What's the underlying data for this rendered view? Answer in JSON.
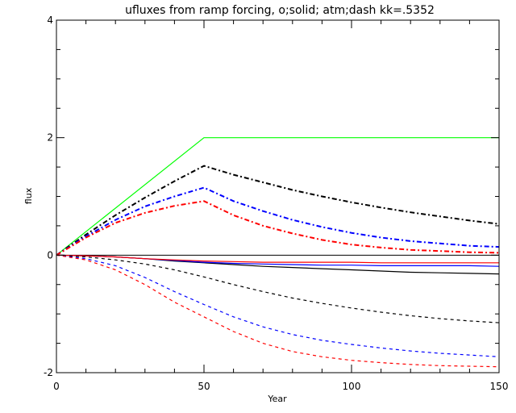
{
  "chart_data": {
    "type": "line",
    "title": "ufluxes from ramp forcing, o;solid; atm;dash kk=.5352",
    "xlabel": "Year",
    "ylabel": "flux",
    "xlim": [
      0,
      150
    ],
    "ylim": [
      -2,
      4
    ],
    "xticks": [
      0,
      50,
      100,
      150
    ],
    "yticks": [
      -2,
      0,
      2,
      4
    ],
    "x_minor_step": 10,
    "y_minor_step": 0.5,
    "grid": false,
    "legend": "none",
    "series": [
      {
        "color": "#00ff00",
        "style": "solid",
        "x": [
          0,
          50,
          150
        ],
        "y": [
          0,
          2.0,
          2.0
        ]
      },
      {
        "color": "#000000",
        "style": "dashdot",
        "x": [
          0,
          10,
          20,
          30,
          40,
          50,
          60,
          70,
          80,
          90,
          100,
          110,
          120,
          130,
          140,
          150
        ],
        "y": [
          0,
          0.35,
          0.68,
          0.98,
          1.26,
          1.52,
          1.37,
          1.24,
          1.11,
          1.0,
          0.9,
          0.81,
          0.73,
          0.66,
          0.59,
          0.53
        ]
      },
      {
        "color": "#0000ff",
        "style": "dashdot",
        "x": [
          0,
          10,
          20,
          30,
          40,
          50,
          60,
          70,
          80,
          90,
          100,
          110,
          120,
          130,
          140,
          150
        ],
        "y": [
          0,
          0.32,
          0.6,
          0.83,
          1.0,
          1.15,
          0.92,
          0.75,
          0.6,
          0.48,
          0.38,
          0.3,
          0.24,
          0.2,
          0.16,
          0.14
        ]
      },
      {
        "color": "#ff0000",
        "style": "dashdot",
        "x": [
          0,
          10,
          20,
          30,
          40,
          50,
          60,
          70,
          80,
          90,
          100,
          110,
          120,
          130,
          140,
          150
        ],
        "y": [
          0,
          0.3,
          0.55,
          0.72,
          0.84,
          0.92,
          0.68,
          0.5,
          0.37,
          0.26,
          0.18,
          0.13,
          0.09,
          0.07,
          0.05,
          0.04
        ]
      },
      {
        "color": "#000000",
        "style": "solid",
        "x": [
          0,
          10,
          20,
          30,
          40,
          50,
          60,
          70,
          80,
          90,
          100,
          110,
          120,
          130,
          140,
          150
        ],
        "y": [
          0,
          -0.01,
          -0.03,
          -0.06,
          -0.1,
          -0.13,
          -0.16,
          -0.19,
          -0.21,
          -0.23,
          -0.25,
          -0.27,
          -0.29,
          -0.3,
          -0.31,
          -0.32
        ]
      },
      {
        "color": "#0000ff",
        "style": "solid",
        "x": [
          0,
          10,
          20,
          30,
          40,
          50,
          60,
          70,
          80,
          90,
          100,
          110,
          120,
          130,
          140,
          150
        ],
        "y": [
          0,
          -0.01,
          -0.03,
          -0.06,
          -0.09,
          -0.12,
          -0.14,
          -0.15,
          -0.16,
          -0.17,
          -0.17,
          -0.18,
          -0.18,
          -0.18,
          -0.18,
          -0.19
        ]
      },
      {
        "color": "#ff0000",
        "style": "solid",
        "x": [
          0,
          10,
          20,
          30,
          40,
          50,
          60,
          70,
          80,
          90,
          100,
          110,
          120,
          130,
          140,
          150
        ],
        "y": [
          0,
          -0.01,
          -0.03,
          -0.06,
          -0.08,
          -0.1,
          -0.11,
          -0.12,
          -0.12,
          -0.12,
          -0.12,
          -0.13,
          -0.13,
          -0.13,
          -0.13,
          -0.13
        ]
      },
      {
        "color": "#000000",
        "style": "dashed",
        "x": [
          0,
          10,
          20,
          30,
          40,
          50,
          60,
          70,
          80,
          90,
          100,
          110,
          120,
          130,
          140,
          150
        ],
        "y": [
          0,
          -0.03,
          -0.08,
          -0.15,
          -0.25,
          -0.37,
          -0.5,
          -0.62,
          -0.73,
          -0.82,
          -0.9,
          -0.97,
          -1.03,
          -1.08,
          -1.12,
          -1.15
        ]
      },
      {
        "color": "#0000ff",
        "style": "dashed",
        "x": [
          0,
          10,
          20,
          30,
          40,
          50,
          60,
          70,
          80,
          90,
          100,
          110,
          120,
          130,
          140,
          150
        ],
        "y": [
          0,
          -0.06,
          -0.18,
          -0.38,
          -0.62,
          -0.84,
          -1.05,
          -1.22,
          -1.35,
          -1.45,
          -1.52,
          -1.58,
          -1.63,
          -1.67,
          -1.7,
          -1.73
        ]
      },
      {
        "color": "#ff0000",
        "style": "dashed",
        "x": [
          0,
          10,
          20,
          30,
          40,
          50,
          60,
          70,
          80,
          90,
          100,
          110,
          120,
          130,
          140,
          150
        ],
        "y": [
          0,
          -0.08,
          -0.25,
          -0.5,
          -0.8,
          -1.05,
          -1.3,
          -1.5,
          -1.64,
          -1.73,
          -1.79,
          -1.83,
          -1.86,
          -1.88,
          -1.89,
          -1.9
        ]
      }
    ]
  }
}
